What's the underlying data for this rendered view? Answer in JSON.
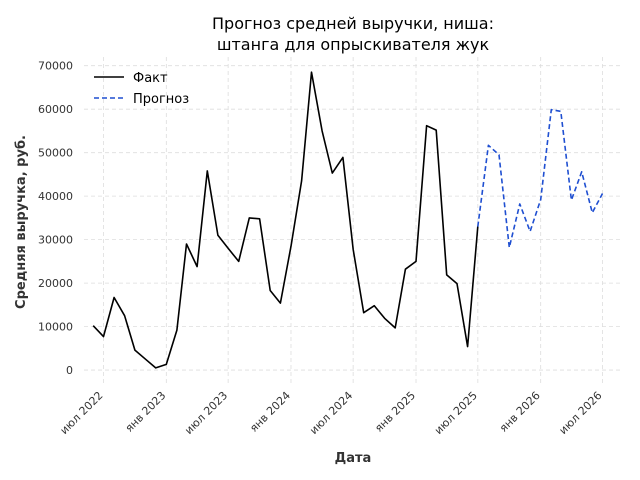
{
  "chart_data": {
    "type": "line",
    "title_lines": [
      "Прогноз средней выручки, ниша:",
      "штанга для опрыскивателя жук"
    ],
    "xlabel": "Дата",
    "ylabel": "Средняя выручка, руб.",
    "x_ticks": [
      {
        "date": "2022-07-01",
        "label": "июл 2022"
      },
      {
        "date": "2023-01-01",
        "label": "янв 2023"
      },
      {
        "date": "2023-07-01",
        "label": "июл 2023"
      },
      {
        "date": "2024-01-01",
        "label": "янв 2024"
      },
      {
        "date": "2024-07-01",
        "label": "июл 2024"
      },
      {
        "date": "2025-01-01",
        "label": "янв 2025"
      },
      {
        "date": "2025-07-01",
        "label": "июл 2025"
      },
      {
        "date": "2026-01-01",
        "label": "янв 2026"
      },
      {
        "date": "2026-07-01",
        "label": "июл 2026"
      }
    ],
    "y_ticks": [
      0,
      10000,
      20000,
      30000,
      40000,
      50000,
      60000,
      70000
    ],
    "xlim": [
      "2022-05-05",
      "2026-08-30"
    ],
    "ylim": [
      -3200,
      72000
    ],
    "grid": true,
    "legend_position": "top-left",
    "series": [
      {
        "name": "Факт",
        "color": "#000000",
        "dashed": false,
        "points": [
          {
            "x": "2022-06-01",
            "y": 10200
          },
          {
            "x": "2022-07-01",
            "y": 7700
          },
          {
            "x": "2022-08-01",
            "y": 16700
          },
          {
            "x": "2022-09-01",
            "y": 12500
          },
          {
            "x": "2022-10-01",
            "y": 4600
          },
          {
            "x": "2022-11-01",
            "y": 2500
          },
          {
            "x": "2022-12-01",
            "y": 500
          },
          {
            "x": "2023-01-01",
            "y": 1300
          },
          {
            "x": "2023-02-01",
            "y": 9200
          },
          {
            "x": "2023-03-01",
            "y": 29000
          },
          {
            "x": "2023-04-01",
            "y": 23800
          },
          {
            "x": "2023-05-01",
            "y": 45800
          },
          {
            "x": "2023-06-01",
            "y": 31000
          },
          {
            "x": "2023-07-01",
            "y": 28000
          },
          {
            "x": "2023-08-01",
            "y": 25000
          },
          {
            "x": "2023-09-01",
            "y": 35000
          },
          {
            "x": "2023-10-01",
            "y": 34800
          },
          {
            "x": "2023-11-01",
            "y": 18300
          },
          {
            "x": "2023-12-01",
            "y": 15400
          },
          {
            "x": "2024-01-01",
            "y": 28500
          },
          {
            "x": "2024-02-01",
            "y": 43500
          },
          {
            "x": "2024-03-01",
            "y": 68500
          },
          {
            "x": "2024-04-01",
            "y": 55000
          },
          {
            "x": "2024-05-01",
            "y": 45300
          },
          {
            "x": "2024-06-01",
            "y": 48900
          },
          {
            "x": "2024-07-01",
            "y": 27700
          },
          {
            "x": "2024-08-01",
            "y": 13200
          },
          {
            "x": "2024-09-01",
            "y": 14800
          },
          {
            "x": "2024-10-01",
            "y": 11900
          },
          {
            "x": "2024-11-01",
            "y": 9700
          },
          {
            "x": "2024-12-01",
            "y": 23200
          },
          {
            "x": "2025-01-01",
            "y": 25000
          },
          {
            "x": "2025-02-01",
            "y": 56200
          },
          {
            "x": "2025-03-01",
            "y": 55200
          },
          {
            "x": "2025-04-01",
            "y": 21900
          },
          {
            "x": "2025-05-01",
            "y": 19900
          },
          {
            "x": "2025-06-01",
            "y": 5400
          },
          {
            "x": "2025-07-01",
            "y": 33000
          }
        ]
      },
      {
        "name": "Прогноз",
        "color": "#1f4fd1",
        "dashed": true,
        "points": [
          {
            "x": "2025-07-01",
            "y": 33000
          },
          {
            "x": "2025-08-01",
            "y": 51700
          },
          {
            "x": "2025-09-01",
            "y": 49500
          },
          {
            "x": "2025-10-01",
            "y": 28200
          },
          {
            "x": "2025-11-01",
            "y": 38200
          },
          {
            "x": "2025-12-01",
            "y": 31900
          },
          {
            "x": "2026-01-01",
            "y": 39200
          },
          {
            "x": "2026-02-01",
            "y": 59900
          },
          {
            "x": "2026-03-01",
            "y": 59500
          },
          {
            "x": "2026-04-01",
            "y": 39100
          },
          {
            "x": "2026-05-01",
            "y": 45600
          },
          {
            "x": "2026-06-01",
            "y": 36200
          },
          {
            "x": "2026-07-01",
            "y": 40600
          }
        ]
      }
    ]
  }
}
